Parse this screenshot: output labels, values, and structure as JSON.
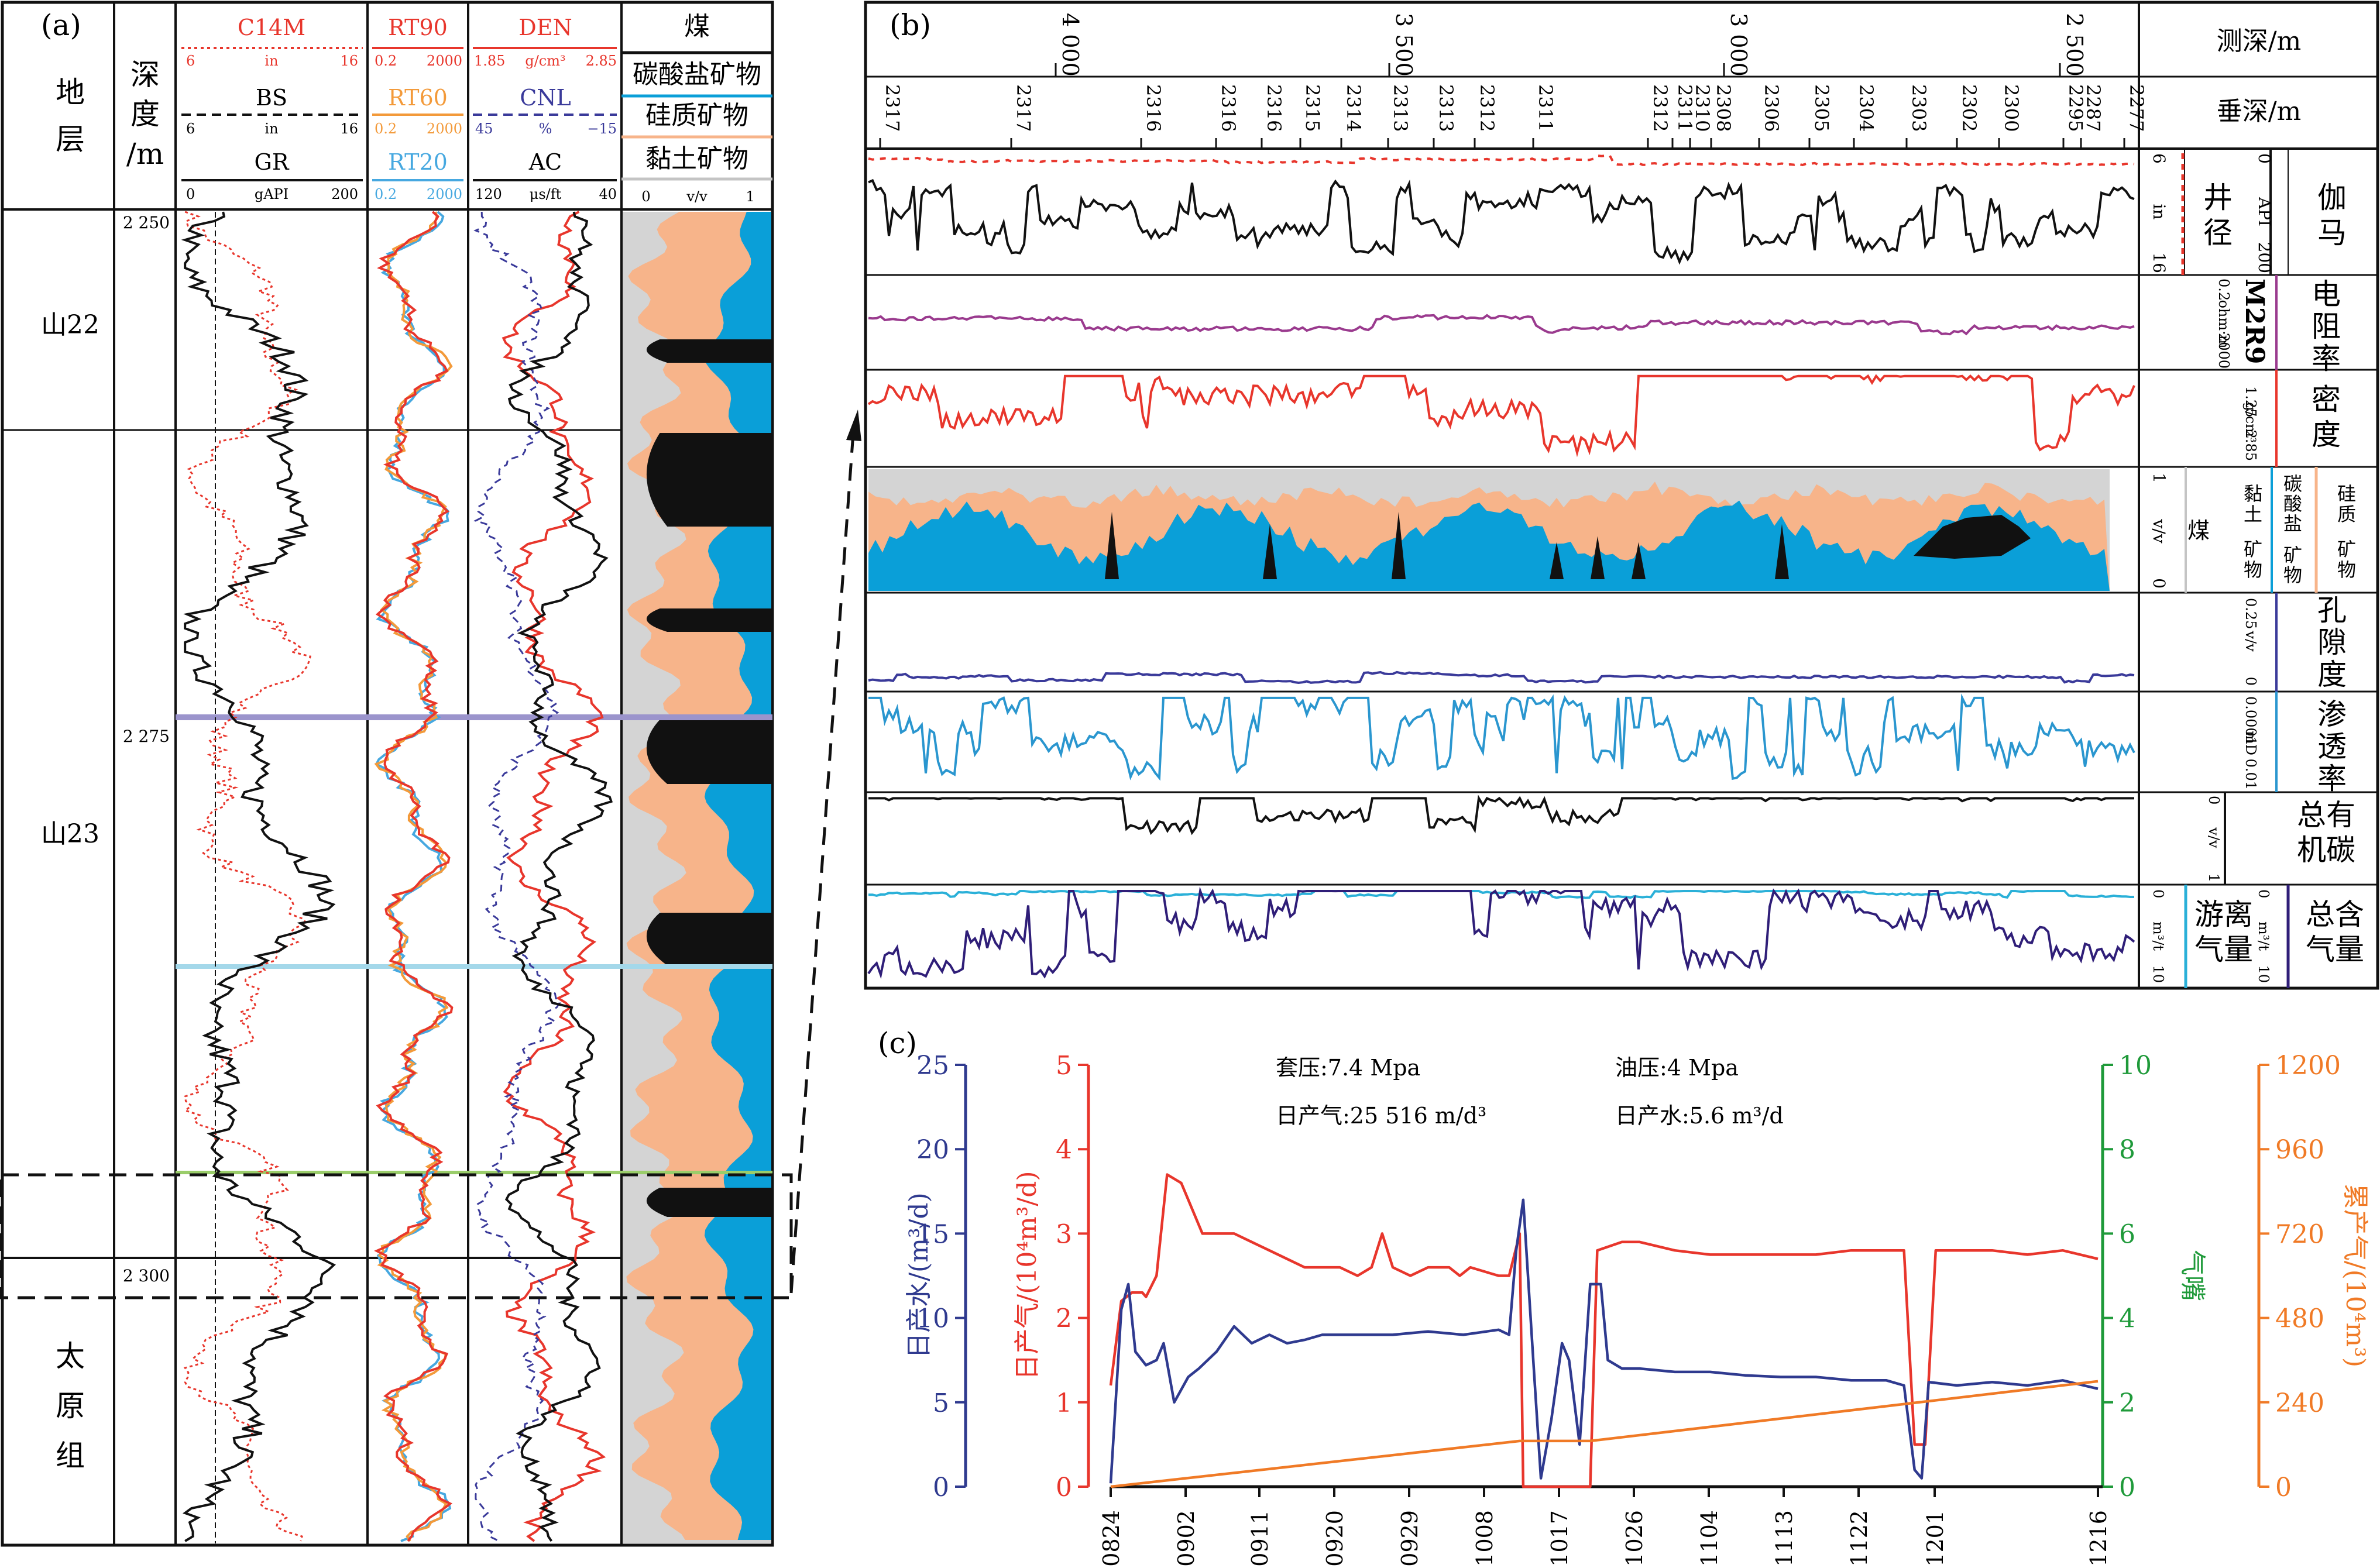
{
  "panel_a": {
    "label": "(a)",
    "col_stratum": [
      "地",
      "层"
    ],
    "col_depth": [
      "深",
      "度",
      "/m"
    ],
    "track1": {
      "c14m": "C14M",
      "c14m_min": "6",
      "c14m_unit": "in",
      "c14m_max": "16",
      "bs": "BS",
      "bs_min": "6",
      "bs_unit": "in",
      "bs_max": "16",
      "gr": "GR",
      "gr_min": "0",
      "gr_unit": "gAPI",
      "gr_max": "200"
    },
    "track2": {
      "rt90": "RT90",
      "rt90_min": "0.2",
      "rt90_max": "2000",
      "rt60": "RT60",
      "rt60_min": "0.2",
      "rt60_max": "2000",
      "rt20": "RT20",
      "rt20_min": "0.2",
      "rt20_max": "2000"
    },
    "track3": {
      "den": "DEN",
      "den_min": "1.85",
      "den_unit": "g/cm³",
      "den_max": "2.85",
      "cnl": "CNL",
      "cnl_min": "45",
      "cnl_unit": "%",
      "cnl_max": "−15",
      "ac": "AC",
      "ac_min": "120",
      "ac_unit": "μs/ft",
      "ac_max": "40"
    },
    "track4": {
      "coal": "煤",
      "carbonate": "碳酸盐矿物",
      "siliceous": "硅质矿物",
      "clay": "黏土矿物",
      "min": "0",
      "unit": "v/v",
      "max": "1"
    },
    "strata": [
      {
        "name": "山22"
      },
      {
        "name": "山23"
      },
      {
        "name": [
          "太",
          "原",
          "组"
        ]
      }
    ],
    "depth_ticks": [
      "2 250",
      "2 275",
      "2 300"
    ],
    "colors": {
      "c14m": "#e8362c",
      "bs": "#111111",
      "gr": "#111111",
      "rt90": "#e8362c",
      "rt60": "#f39a3a",
      "rt20": "#46a8e0",
      "den": "#e8362c",
      "cnl": "#3a3a9a",
      "ac": "#111111",
      "coal": "#111111",
      "carbonate": "#0a9fd8",
      "siliceous": "#f7b48a",
      "clay": "#d4d4d4",
      "boundary_purple": "#9b94cc",
      "boundary_cyan": "#a4d8ea",
      "boundary_green": "#9acd6a"
    }
  },
  "panel_b": {
    "label": "(b)",
    "md_title": "测深/m",
    "tvd_title": "垂深/m",
    "md_ticks": [
      "4 000",
      "3 500",
      "3 000",
      "2 500"
    ],
    "tvd_ticks": [
      "2317",
      "2317",
      "2316",
      "2316",
      "2316",
      "2315",
      "2314",
      "2313",
      "2313",
      "2312",
      "2311",
      "2312",
      "2311",
      "2310",
      "2308",
      "2306",
      "2305",
      "2304",
      "2303",
      "2302",
      "2300",
      "2295",
      "2287",
      "2277"
    ],
    "track_gamma": {
      "title": [
        "伽",
        "马"
      ],
      "sub": [
        "井",
        "径"
      ],
      "api_min": "0",
      "api_unit": "API",
      "api_max": "200",
      "in_min": "6",
      "in_unit": "in",
      "in_max": "16"
    },
    "track_res": {
      "title": [
        "电",
        "阻",
        "率"
      ],
      "curve": "M2R9",
      "min": "0.2",
      "unit": "ohm·m",
      "max": "2000"
    },
    "track_den": {
      "title": [
        "密",
        "度"
      ],
      "min": "1.25",
      "unit": "g/cm³",
      "max": "2.85"
    },
    "track_min": {
      "coal": "煤",
      "clay": [
        "黏",
        "土",
        "矿",
        "物"
      ],
      "carbonate": [
        "碳",
        "酸",
        "盐",
        "矿",
        "物"
      ],
      "siliceous": [
        "硅",
        "质",
        "矿",
        "物"
      ],
      "max": "1",
      "unit": "v/v",
      "min": "0"
    },
    "track_por": {
      "title": [
        "孔",
        "隙",
        "度"
      ],
      "max": "0.25",
      "unit": "v/v",
      "min": "0"
    },
    "track_perm": {
      "title": [
        "渗",
        "透",
        "率"
      ],
      "min": "0.0001",
      "unit": "mD",
      "max": "0.01"
    },
    "track_toc": {
      "title": [
        "总有",
        "机碳"
      ],
      "min": "0",
      "unit": "v/v",
      "max": "1"
    },
    "track_gas": {
      "title_total": [
        "总含",
        "气量"
      ],
      "title_free": [
        "游离",
        "气量"
      ],
      "min": "0",
      "unit": "m³/t",
      "max": "10"
    },
    "colors": {
      "gamma": "#111111",
      "caliper": "#e8362c",
      "resistivity": "#9a3a8e",
      "density": "#e8362c",
      "porosity": "#3a3a9a",
      "permeability": "#2a96cf",
      "toc": "#111111",
      "gas_total": "#2f1e78",
      "gas_free": "#2ab0d8"
    }
  },
  "panel_c": {
    "label": "(c)",
    "annotations": [
      "套压:7.4 Mpa",
      "油压:4 Mpa",
      "日产气:25 516 m/d³",
      "日产水:5.6 m³/d"
    ]
  },
  "chart_data": {
    "type": "line",
    "x": [
      "0824",
      "0902",
      "0911",
      "0920",
      "0929",
      "1008",
      "1017",
      "1026",
      "1104",
      "1113",
      "1122",
      "1201",
      "1216"
    ],
    "axes": {
      "water": {
        "label": "日产水/(m³/d)",
        "ticks": [
          "0",
          "5",
          "10",
          "15",
          "20",
          "25"
        ],
        "range": [
          0,
          25
        ],
        "color": "#2f3a8f"
      },
      "gas": {
        "label": "日产气/(10⁴m³/d)",
        "ticks": [
          "0",
          "1",
          "2",
          "3",
          "4",
          "5"
        ],
        "range": [
          0,
          5
        ],
        "color": "#e8362c"
      },
      "choke": {
        "label": "气嘴",
        "ticks": [
          "0",
          "2",
          "4",
          "6",
          "8",
          "10"
        ],
        "range": [
          0,
          10
        ],
        "color": "#1f9a3a"
      },
      "cumgas": {
        "label": "累产气/(10⁴m³)",
        "ticks": [
          "0",
          "240",
          "480",
          "720",
          "960",
          "1200"
        ],
        "range": [
          0,
          1200
        ],
        "color": "#f07a26"
      }
    },
    "series": [
      {
        "axis": "gas",
        "color": "#e8362c",
        "points": [
          [
            0.0,
            1.2
          ],
          [
            0.3,
            2.2
          ],
          [
            0.6,
            2.3
          ],
          [
            0.9,
            2.3
          ],
          [
            1.0,
            2.25
          ],
          [
            1.3,
            2.5
          ],
          [
            1.6,
            3.7
          ],
          [
            2.0,
            3.6
          ],
          [
            2.3,
            3.3
          ],
          [
            2.6,
            3.0
          ],
          [
            3.0,
            3.0
          ],
          [
            3.5,
            3.0
          ],
          [
            4.0,
            2.9
          ],
          [
            4.5,
            2.8
          ],
          [
            5.0,
            2.7
          ],
          [
            5.5,
            2.6
          ],
          [
            6.0,
            2.6
          ],
          [
            6.5,
            2.6
          ],
          [
            7.0,
            2.5
          ],
          [
            7.4,
            2.6
          ],
          [
            7.7,
            3.0
          ],
          [
            8.0,
            2.6
          ],
          [
            8.5,
            2.5
          ],
          [
            9.0,
            2.6
          ],
          [
            9.3,
            2.6
          ],
          [
            9.6,
            2.6
          ],
          [
            9.9,
            2.5
          ],
          [
            10.2,
            2.6
          ],
          [
            11.0,
            2.5
          ],
          [
            11.3,
            2.5
          ],
          [
            11.6,
            3.0
          ],
          [
            11.7,
            0.0
          ],
          [
            12.5,
            0.0
          ],
          [
            13.6,
            0.0
          ],
          [
            13.8,
            2.8
          ],
          [
            14.5,
            2.9
          ],
          [
            15.0,
            2.9
          ],
          [
            16.0,
            2.8
          ],
          [
            17.0,
            2.75
          ],
          [
            18.0,
            2.75
          ],
          [
            19.0,
            2.75
          ],
          [
            20.0,
            2.75
          ],
          [
            21.0,
            2.8
          ],
          [
            22.0,
            2.8
          ],
          [
            22.5,
            2.8
          ],
          [
            22.8,
            0.5
          ],
          [
            23.1,
            0.5
          ],
          [
            23.4,
            2.8
          ],
          [
            24.0,
            2.8
          ],
          [
            25.0,
            2.8
          ],
          [
            26.0,
            2.75
          ],
          [
            27.0,
            2.8
          ],
          [
            28.0,
            2.7
          ]
        ]
      },
      {
        "axis": "water",
        "color": "#2f3a8f",
        "points": [
          [
            0.0,
            0.2
          ],
          [
            0.3,
            10.5
          ],
          [
            0.5,
            12.0
          ],
          [
            0.7,
            8.0
          ],
          [
            1.0,
            7.2
          ],
          [
            1.3,
            7.5
          ],
          [
            1.5,
            8.5
          ],
          [
            1.8,
            5.0
          ],
          [
            2.2,
            6.5
          ],
          [
            2.5,
            7.0
          ],
          [
            3.0,
            8.0
          ],
          [
            3.5,
            9.5
          ],
          [
            4.0,
            8.5
          ],
          [
            4.5,
            9.0
          ],
          [
            5.0,
            8.5
          ],
          [
            5.5,
            8.7
          ],
          [
            6.0,
            9.0
          ],
          [
            7.0,
            9.0
          ],
          [
            8.0,
            9.0
          ],
          [
            9.0,
            9.2
          ],
          [
            10.0,
            9.0
          ],
          [
            11.0,
            9.3
          ],
          [
            11.3,
            9.0
          ],
          [
            11.5,
            14.0
          ],
          [
            11.7,
            17.0
          ],
          [
            12.0,
            7.0
          ],
          [
            12.2,
            0.5
          ],
          [
            12.5,
            4.0
          ],
          [
            12.8,
            8.5
          ],
          [
            13.0,
            7.5
          ],
          [
            13.3,
            2.5
          ],
          [
            13.6,
            12.0
          ],
          [
            13.9,
            12.0
          ],
          [
            14.1,
            7.5
          ],
          [
            14.5,
            7.0
          ],
          [
            15.0,
            7.0
          ],
          [
            16.0,
            6.8
          ],
          [
            17.0,
            6.8
          ],
          [
            18.0,
            6.6
          ],
          [
            19.0,
            6.5
          ],
          [
            20.0,
            6.5
          ],
          [
            21.0,
            6.3
          ],
          [
            22.0,
            6.3
          ],
          [
            22.5,
            6.0
          ],
          [
            22.8,
            1.0
          ],
          [
            23.0,
            0.5
          ],
          [
            23.2,
            6.2
          ],
          [
            24.0,
            6.0
          ],
          [
            25.0,
            6.2
          ],
          [
            26.0,
            6.0
          ],
          [
            27.0,
            6.3
          ],
          [
            28.0,
            5.8
          ]
        ]
      },
      {
        "axis": "cumgas",
        "color": "#f07a26",
        "points": [
          [
            0.0,
            0
          ],
          [
            11.6,
            130
          ],
          [
            13.6,
            130
          ],
          [
            28.0,
            300
          ]
        ]
      }
    ],
    "gridlines": false
  }
}
